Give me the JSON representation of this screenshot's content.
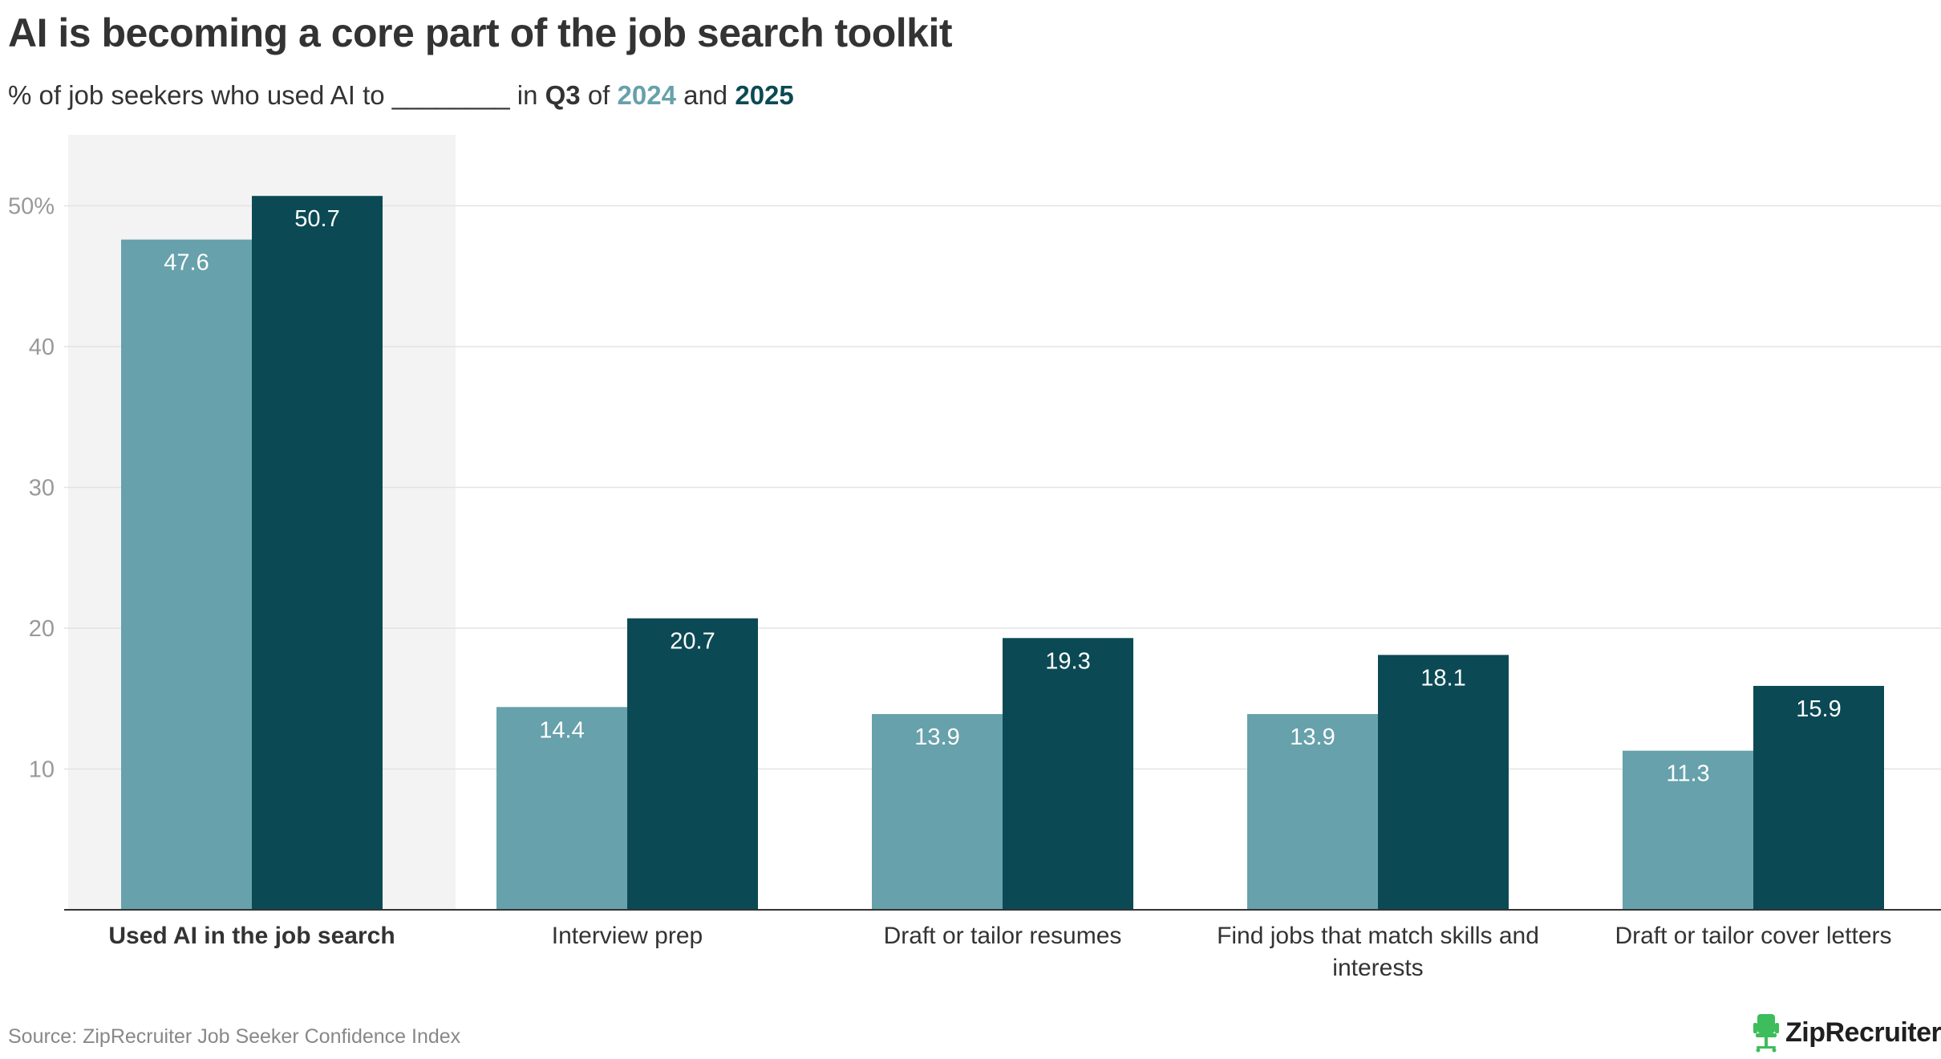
{
  "title": "AI is becoming a core part of the job search toolkit",
  "subtitle": {
    "prefix": "% of job seekers who used AI to ________ in ",
    "quarter": "Q3",
    "of": " of ",
    "year_a": "2024",
    "and": " and ",
    "year_b": "2025"
  },
  "colors": {
    "series_2024": "#67a1ab",
    "series_2025": "#0b4a54",
    "highlight_band": "#f3f3f3",
    "gridline": "#e3e3e3",
    "axis": "#333333",
    "tick_label": "#999999",
    "logo_green": "#3dbd5b"
  },
  "chart_data": {
    "type": "bar",
    "categories": [
      "Used AI in the job search",
      "Interview prep",
      "Draft or tailor resumes",
      "Find jobs that match skills and interests",
      "Draft or tailor cover letters"
    ],
    "category_lines": [
      [
        "Used AI in the job search"
      ],
      [
        "Interview prep"
      ],
      [
        "Draft or tailor resumes"
      ],
      [
        "Find jobs that match skills and",
        "interests"
      ],
      [
        "Draft or tailor cover letters"
      ]
    ],
    "highlighted_category": "Used AI in the job search",
    "series": [
      {
        "name": "2024",
        "values": [
          47.6,
          14.4,
          13.9,
          13.9,
          11.3
        ]
      },
      {
        "name": "2025",
        "values": [
          50.7,
          20.7,
          19.3,
          18.1,
          15.9
        ]
      }
    ],
    "data_labels": [
      [
        "47.6",
        "14.4",
        "13.9",
        "13.9",
        "11.3"
      ],
      [
        "50.7",
        "20.7",
        "19.3",
        "18.1",
        "15.9"
      ]
    ],
    "yticks": [
      10,
      20,
      30,
      40,
      50
    ],
    "ytick_labels": [
      "10",
      "20",
      "30",
      "40",
      "50%"
    ],
    "ylim": [
      0,
      55
    ],
    "grid": true
  },
  "source": "Source: ZipRecruiter Job Seeker Confidence Index",
  "logo": {
    "text": "ZipRecruiter",
    "reg": "®",
    "icon": "chair-icon"
  }
}
